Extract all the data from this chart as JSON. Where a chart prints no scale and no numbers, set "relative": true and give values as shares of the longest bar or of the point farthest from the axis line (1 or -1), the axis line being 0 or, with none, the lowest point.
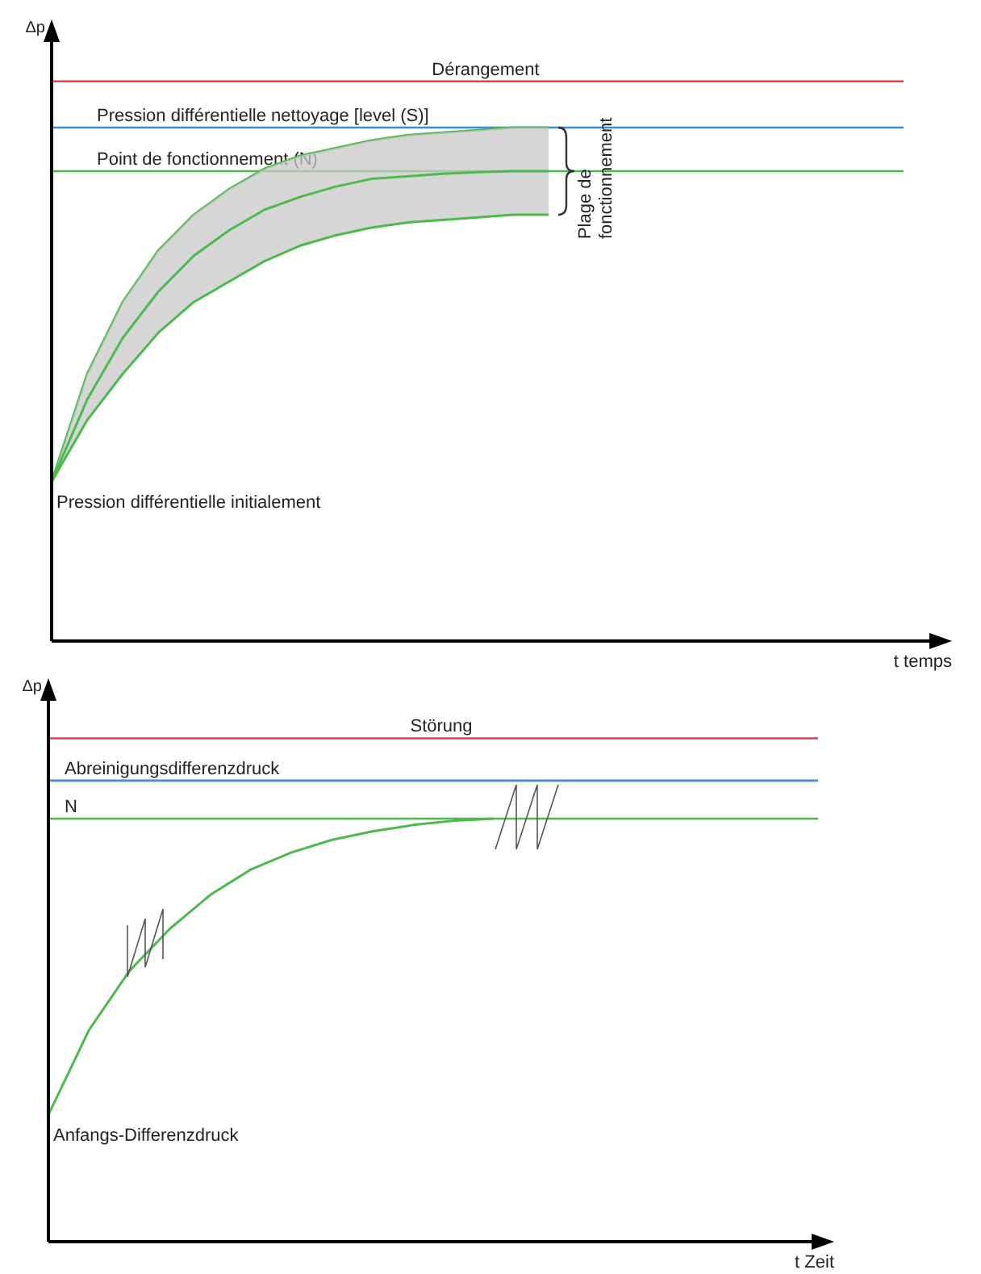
{
  "chart_data": [
    {
      "type": "line",
      "relative": true,
      "ylabel": "Δp",
      "xlabel": "t temps",
      "categories": [
        null,
        null,
        null,
        null,
        null,
        null,
        null,
        null,
        null,
        null,
        null,
        null,
        null,
        null,
        null,
        null,
        null,
        null,
        null,
        null,
        null,
        null,
        null,
        null,
        null
      ],
      "series": [
        {
          "color": "#4cbb4c",
          "values": [
            0.31,
            0.52,
            0.66,
            0.76,
            0.83,
            0.88,
            0.92,
            0.945,
            0.96,
            0.975,
            0.985,
            0.99,
            0.995,
            1.0,
            1.0,
            null,
            null,
            null,
            null,
            null,
            null,
            null,
            null,
            null,
            null
          ]
        },
        {
          "color": "#4cbb4c",
          "values": [
            0.31,
            0.47,
            0.59,
            0.68,
            0.75,
            0.8,
            0.84,
            0.865,
            0.885,
            0.9,
            0.905,
            0.91,
            0.913,
            0.915,
            0.915,
            null,
            null,
            null,
            null,
            null,
            null,
            null,
            null,
            null,
            null
          ],
          "lower": [
            0.31,
            0.43,
            0.52,
            0.6,
            0.66,
            0.7,
            0.74,
            0.77,
            0.79,
            0.805,
            0.815,
            0.82,
            0.825,
            0.83,
            0.83,
            null,
            null,
            null,
            null,
            null,
            null,
            null,
            null,
            null,
            null
          ],
          "upper": [
            0.31,
            0.52,
            0.66,
            0.76,
            0.83,
            0.88,
            0.92,
            0.945,
            0.96,
            0.975,
            0.985,
            0.99,
            0.995,
            1.0,
            1.0,
            null,
            null,
            null,
            null,
            null,
            null,
            null,
            null,
            null,
            null
          ]
        },
        {
          "color": "#4cbb4c",
          "values": [
            0.31,
            0.43,
            0.52,
            0.6,
            0.66,
            0.7,
            0.74,
            0.77,
            0.79,
            0.805,
            0.815,
            0.82,
            0.825,
            0.83,
            0.83,
            null,
            null,
            null,
            null,
            null,
            null,
            null,
            null,
            null,
            null
          ]
        }
      ],
      "ref_lines": [
        {
          "axis": "y",
          "value": 1.09,
          "label": "Dérangement",
          "color": "#e8404a"
        },
        {
          "axis": "y",
          "value": 1.0,
          "label": "Pression différentielle nettoyage [level (S)]",
          "color": "#3a8ed8"
        },
        {
          "axis": "y",
          "value": 0.915,
          "label": "Point de fonctionnement  (N)",
          "color": "#4cbb4c"
        }
      ],
      "annotations": [
        "Pression différentielle initialement",
        "Plage de fonctionnement"
      ]
    },
    {
      "type": "line",
      "relative": true,
      "ylabel": "Δp",
      "xlabel": "t Zeit",
      "categories": [
        null,
        null,
        null,
        null,
        null,
        null,
        null,
        null,
        null,
        null,
        null,
        null,
        null,
        null,
        null,
        null,
        null,
        null,
        null,
        null
      ],
      "series": [
        {
          "color": "#4cbb4c",
          "values": [
            0.3,
            0.5,
            0.64,
            0.74,
            0.82,
            0.88,
            0.92,
            0.95,
            0.97,
            0.985,
            0.995,
            1.0,
            null,
            null,
            null,
            null,
            null,
            null,
            null,
            null
          ]
        }
      ],
      "ref_lines": [
        {
          "axis": "y",
          "value": 1.19,
          "label": "Störung",
          "color": "#e8404a"
        },
        {
          "axis": "y",
          "value": 1.09,
          "label": "Abreinigungsdifferenzdruck",
          "color": "#3a8ed8"
        },
        {
          "axis": "y",
          "value": 1.0,
          "label": "N",
          "color": "#4cbb4c"
        }
      ],
      "annotations": [
        "Anfangs-Differenzdruck"
      ]
    }
  ]
}
